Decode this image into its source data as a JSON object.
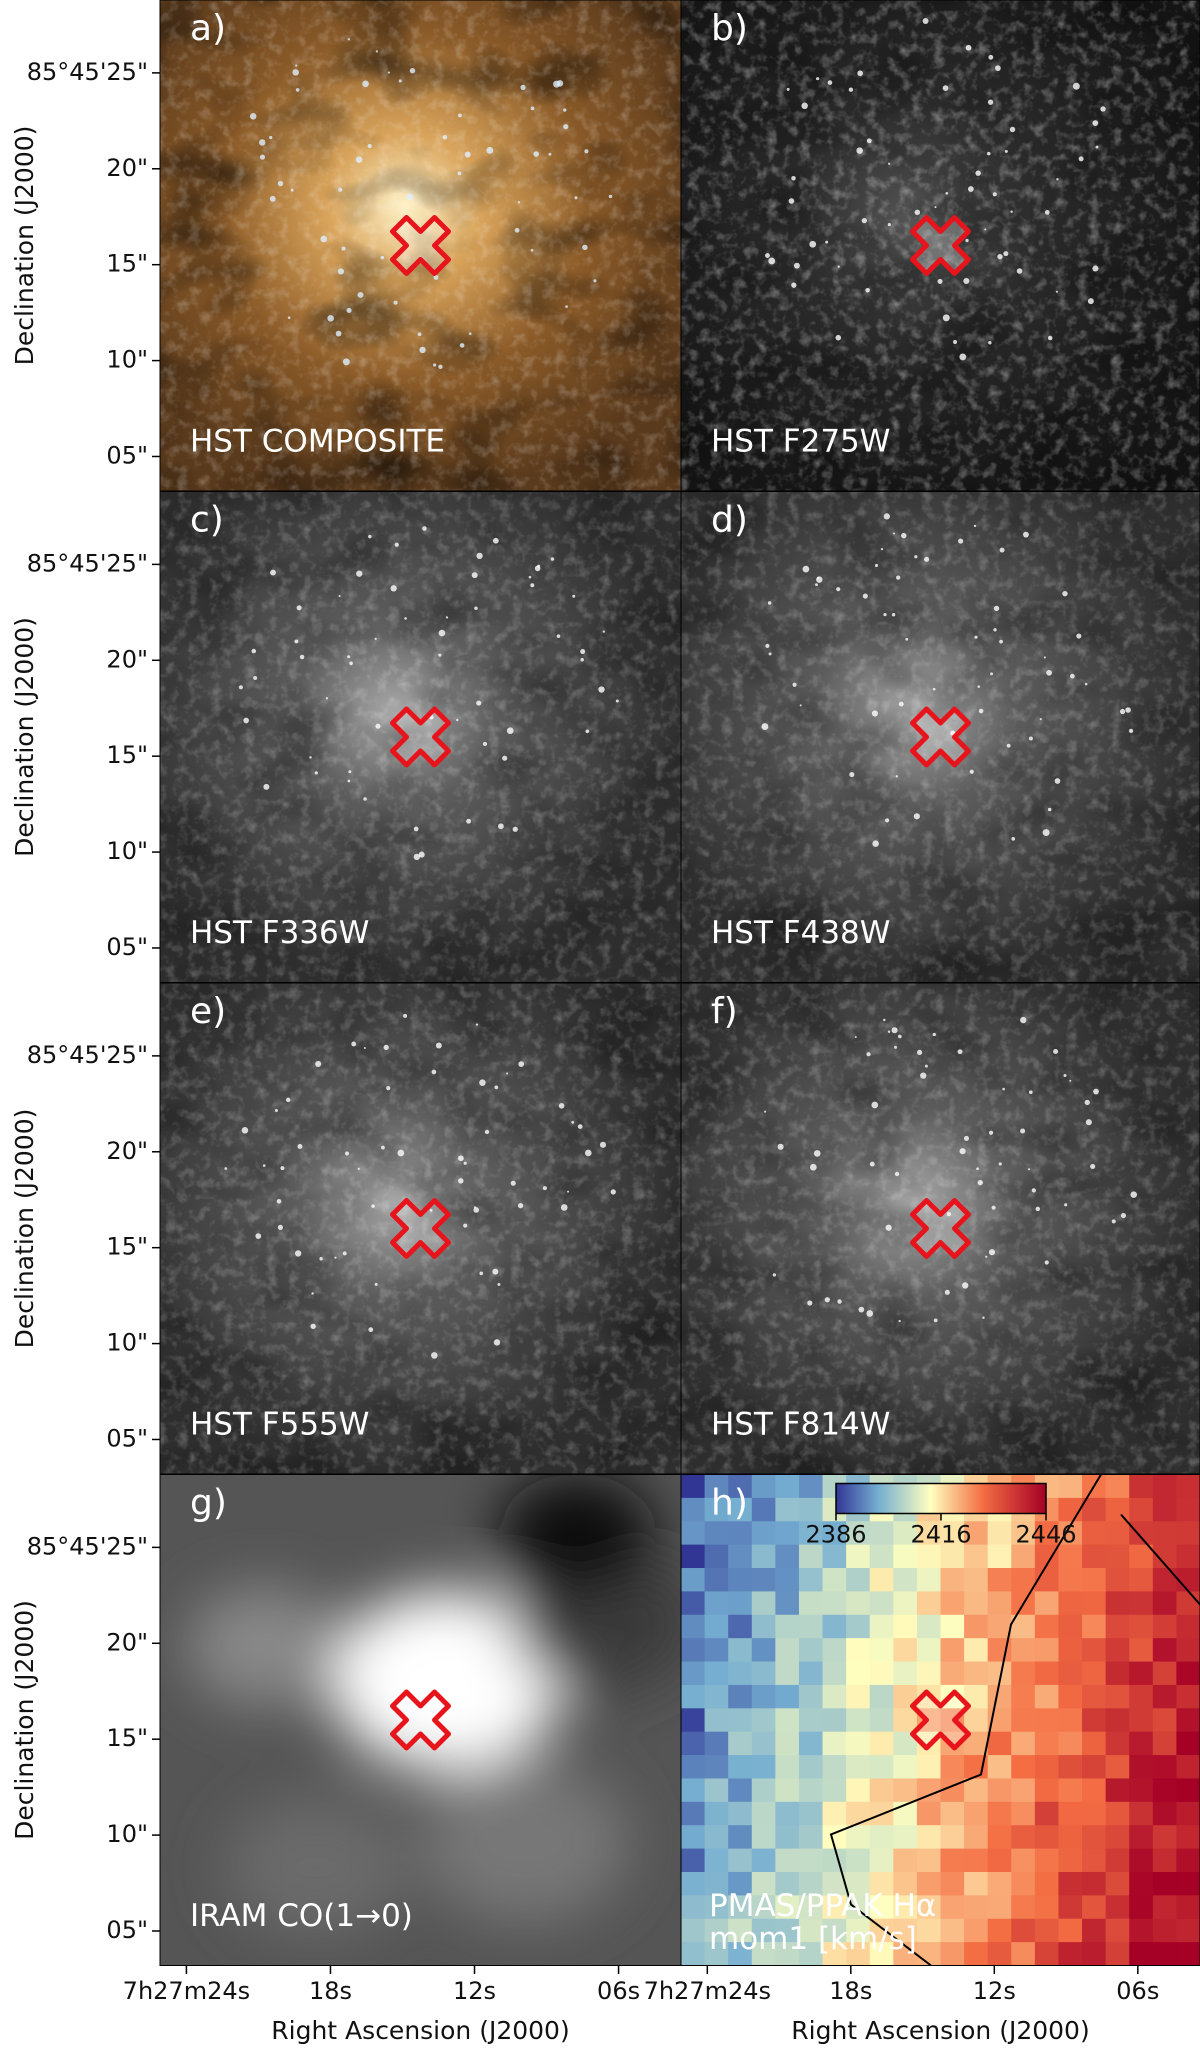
{
  "panels": [
    {
      "letter": "a)",
      "label": "HST COMPOSITE"
    },
    {
      "letter": "b)",
      "label": "HST F275W"
    },
    {
      "letter": "c)",
      "label": "HST F336W"
    },
    {
      "letter": "d)",
      "label": "HST F438W"
    },
    {
      "letter": "e)",
      "label": "HST F555W"
    },
    {
      "letter": "f)",
      "label": "HST F814W"
    },
    {
      "letter": "g)",
      "label": "IRAM CO(1→0)"
    },
    {
      "letter": "h)",
      "label": "PMAS/PPAK Hα",
      "sublabel": "mom1 [km/s]"
    }
  ],
  "y_axis": {
    "label": "Declination (J2000)",
    "lim": [
      28.8,
      3.2
    ],
    "ticks": [
      {
        "value": 25,
        "label": "85°45'25\""
      },
      {
        "value": 20,
        "label": "20\""
      },
      {
        "value": 15,
        "label": "15\""
      },
      {
        "value": 10,
        "label": "10\""
      },
      {
        "value": 5,
        "label": "05\""
      }
    ]
  },
  "x_axis": {
    "label": "Right Ascension (J2000)",
    "lim": [
      25.1,
      3.4
    ],
    "ticks": [
      {
        "value": 24,
        "label": "7h27m24s"
      },
      {
        "value": 18,
        "label": "18s"
      },
      {
        "value": 12,
        "label": "12s"
      },
      {
        "value": 6,
        "label": "06s"
      }
    ]
  },
  "colorbar": {
    "lim": [
      2386,
      2446
    ],
    "ticks": [
      2386,
      2416,
      2446
    ]
  }
}
